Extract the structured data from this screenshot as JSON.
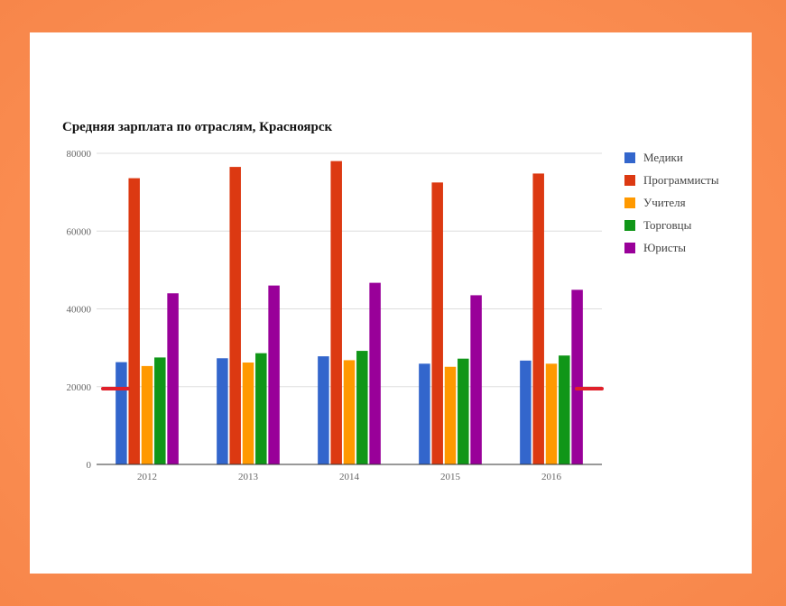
{
  "chart_data": {
    "type": "bar",
    "title": "Средняя зарплата по отраслям, Красноярск",
    "categories": [
      "2012",
      "2013",
      "2014",
      "2015",
      "2016"
    ],
    "ylim": [
      0,
      80000
    ],
    "yticks": [
      0,
      20000,
      40000,
      60000,
      80000
    ],
    "grid": true,
    "legend_position": "right",
    "series": [
      {
        "name": "Медики",
        "color": "#3366cc",
        "values": [
          26300,
          27300,
          27800,
          25900,
          26700
        ]
      },
      {
        "name": "Программисты",
        "color": "#dc3912",
        "values": [
          73600,
          76500,
          78000,
          72500,
          74800
        ]
      },
      {
        "name": "Учителя",
        "color": "#ff9900",
        "values": [
          25300,
          26200,
          26800,
          25100,
          25900
        ]
      },
      {
        "name": "Торговцы",
        "color": "#109618",
        "values": [
          27500,
          28600,
          29200,
          27200,
          28000
        ]
      },
      {
        "name": "Юристы",
        "color": "#990099",
        "values": [
          44000,
          46000,
          46700,
          43500,
          44900
        ]
      }
    ]
  }
}
